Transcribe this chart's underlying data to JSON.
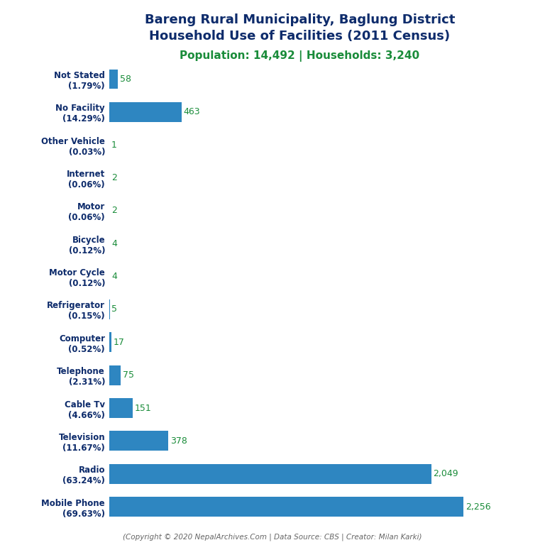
{
  "title_line1": "Bareng Rural Municipality, Baglung District",
  "title_line2": "Household Use of Facilities (2011 Census)",
  "subtitle": "Population: 14,492 | Households: 3,240",
  "footer": "(Copyright © 2020 NepalArchives.Com | Data Source: CBS | Creator: Milan Karki)",
  "categories": [
    "Not Stated\n(1.79%)",
    "No Facility\n(14.29%)",
    "Other Vehicle\n(0.03%)",
    "Internet\n(0.06%)",
    "Motor\n(0.06%)",
    "Bicycle\n(0.12%)",
    "Motor Cycle\n(0.12%)",
    "Refrigerator\n(0.15%)",
    "Computer\n(0.52%)",
    "Telephone\n(2.31%)",
    "Cable Tv\n(4.66%)",
    "Television\n(11.67%)",
    "Radio\n(63.24%)",
    "Mobile Phone\n(69.63%)"
  ],
  "values": [
    58,
    463,
    1,
    2,
    2,
    4,
    4,
    5,
    17,
    75,
    151,
    378,
    2049,
    2256
  ],
  "bar_color": "#2e86c1",
  "title_color": "#0d2b6b",
  "subtitle_color": "#1a8c3a",
  "value_color": "#1a8c3a",
  "footer_color": "#666666",
  "background_color": "#ffffff",
  "xlim": [
    0,
    2600
  ]
}
